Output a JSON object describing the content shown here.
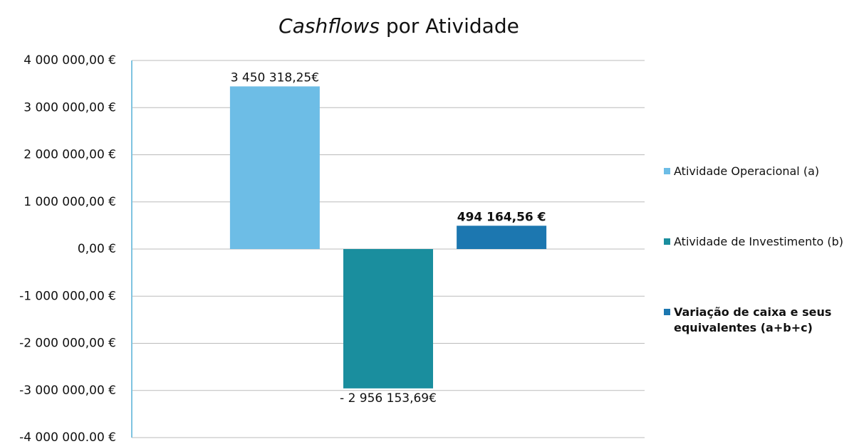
{
  "chart_data": {
    "type": "bar",
    "title": [
      "Cashflows",
      "por Atividade"
    ],
    "categories": [
      null
    ],
    "series": [
      {
        "name": "Atividade Operacional (a)",
        "color": "#6dbde6",
        "values": [
          3450318.25
        ],
        "value_labels": [
          "3 450 318,25€"
        ]
      },
      {
        "name": "Atividade de Investimento (b)",
        "color": "#1a8e9e",
        "values": [
          -2956153.69
        ],
        "value_labels": [
          "- 2 956 153,69€"
        ]
      },
      {
        "name": "Variação de caixa e seus equivalentes (a+b+c)",
        "color": "#1c77b0",
        "values": [
          494164.56
        ],
        "value_labels": [
          "494 164,56 €"
        ]
      }
    ],
    "ylim": [
      -4000000,
      4000000
    ],
    "yticks": [
      {
        "value": 4000000,
        "label": "4 000 000,00 €"
      },
      {
        "value": 3000000,
        "label": "3 000 000,00 €"
      },
      {
        "value": 2000000,
        "label": "2 000 000,00 €"
      },
      {
        "value": 1000000,
        "label": "1 000 000,00 €"
      },
      {
        "value": 0,
        "label": "0,00 €"
      },
      {
        "value": -1000000,
        "label": "-1 000 000,00 €"
      },
      {
        "value": -2000000,
        "label": "-2 000 000,00 €"
      },
      {
        "value": -3000000,
        "label": "-3 000 000,00 €"
      },
      {
        "value": -4000000,
        "label": "-4 000 000.00 €"
      }
    ],
    "grid": true,
    "legend": "right"
  }
}
